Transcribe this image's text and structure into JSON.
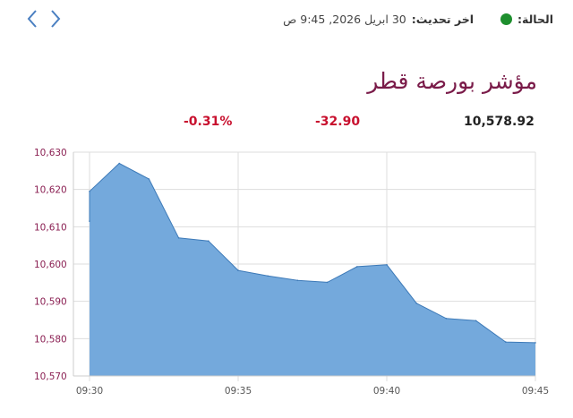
{
  "nav": {
    "prev_icon": "chevron-left-icon",
    "next_icon": "chevron-right-icon"
  },
  "status": {
    "label": "الحالة:",
    "indicator_color": "#1e8f2e",
    "updated_label": "اخر تحديث:",
    "updated_value": "30 ابريل 2026, 9:45 ص"
  },
  "index": {
    "title": "مؤشر بورصة قطر",
    "value": "10,578.92",
    "change": "-32.90",
    "change_pct": "-0.31%",
    "change_color": "#c8102e",
    "title_color": "#7a1b49"
  },
  "chart_data": {
    "type": "area",
    "title": "",
    "xlabel": "",
    "ylabel": "",
    "x_ticks": [
      "09:30",
      "09:35",
      "09:40",
      "09:45"
    ],
    "y_ticks": [
      "10,570",
      "10,580",
      "10,590",
      "10,600",
      "10,610",
      "10,620",
      "10,630"
    ],
    "ylim": [
      10570,
      10630
    ],
    "xlim_minutes": [
      0,
      15
    ],
    "grid": true,
    "fill_color": "#74a9dc",
    "line_color": "#3d7ab8",
    "series": [
      {
        "x": [
          0,
          0,
          1,
          2,
          3,
          4,
          5,
          6,
          7,
          8,
          9,
          10,
          11,
          12,
          13,
          14,
          15
        ],
        "values": [
          10611.5,
          10619.5,
          10627,
          10622.8,
          10607,
          10606.2,
          10598.3,
          10596.8,
          10595.6,
          10595.1,
          10599.3,
          10599.8,
          10589.5,
          10585.4,
          10584.8,
          10579.1,
          10578.9
        ]
      }
    ]
  }
}
